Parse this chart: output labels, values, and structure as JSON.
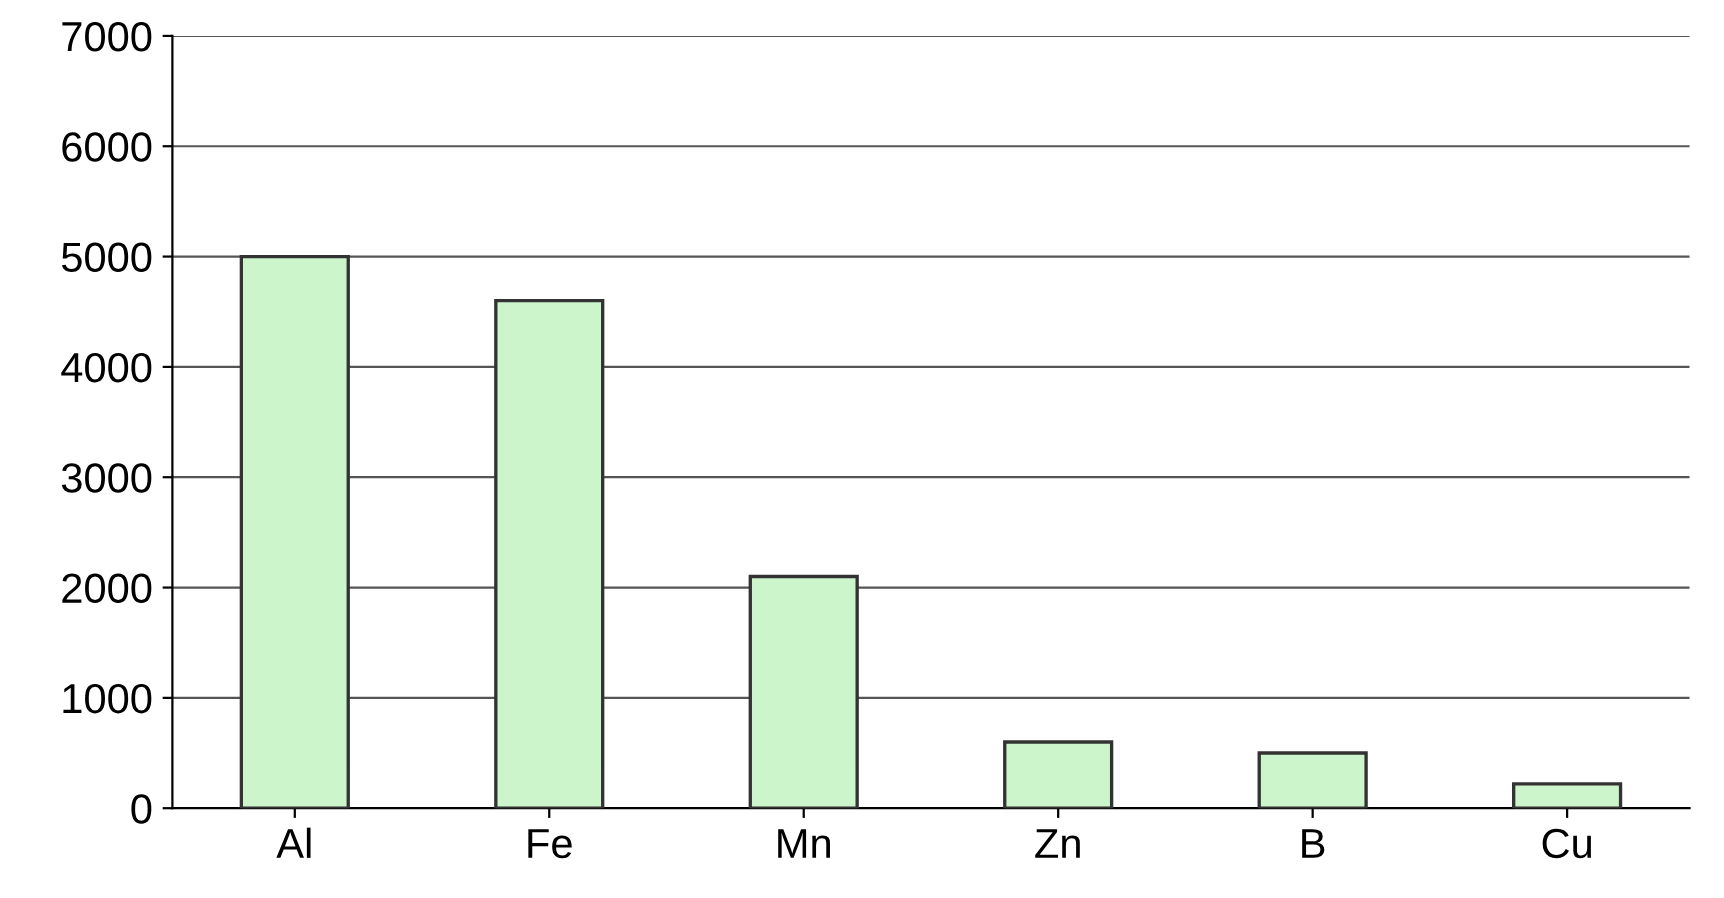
{
  "chart_data": {
    "type": "bar",
    "categories": [
      "Al",
      "Fe",
      "Mn",
      "Zn",
      "B",
      "Cu"
    ],
    "values": [
      5000,
      4600,
      2100,
      600,
      500,
      220
    ],
    "color": "#ccf5cc",
    "ylim": [
      0,
      7000
    ],
    "yticks": [
      0,
      1000,
      2000,
      3000,
      4000,
      5000,
      6000,
      7000
    ],
    "grid": "y"
  }
}
